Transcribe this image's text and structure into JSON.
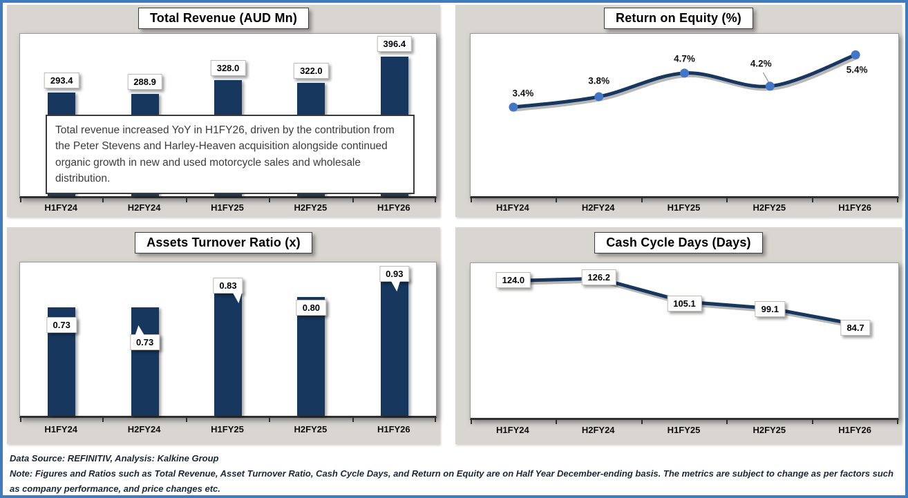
{
  "colors": {
    "navy_series": "#17375E",
    "marker_blue": "#4277C6",
    "panel_bg": "#D9D6D1",
    "outer_border_blue": "#3E7CBF",
    "label_box_bg": "#FFFFFF"
  },
  "chart_data": [
    {
      "id": "total-revenue",
      "type": "bar",
      "title": "Total Revenue (AUD Mn)",
      "categories": [
        "H1FY24",
        "H2FY24",
        "H1FY25",
        "H2FY25",
        "H1FY26"
      ],
      "values": [
        293.4,
        288.9,
        328.0,
        322.0,
        396.4
      ],
      "labels": [
        "293.4",
        "288.9",
        "328.0",
        "322.0",
        "396.4"
      ],
      "ylim": [
        0,
        460
      ],
      "grid": false,
      "legend": "none",
      "annotation": "Total revenue increased YoY in H1FY26, driven by the contribution from the Peter Stevens and Harley-Heaven acquisition alongside continued organic growth in new and used motorcycle sales and wholesale distribution."
    },
    {
      "id": "return-on-equity",
      "type": "line",
      "title": "Return on Equity (%)",
      "categories": [
        "H1FY24",
        "H2FY24",
        "H1FY25",
        "H2FY25",
        "H1FY26"
      ],
      "values": [
        3.4,
        3.8,
        4.7,
        4.2,
        5.4
      ],
      "labels": [
        "3.4%",
        "3.8%",
        "4.7%",
        "4.2%",
        "5.4%"
      ],
      "ylim": [
        0,
        6.2
      ],
      "grid": false,
      "legend": "none"
    },
    {
      "id": "assets-turnover",
      "type": "bar",
      "title": "Assets Turnover Ratio (x)",
      "categories": [
        "H1FY24",
        "H2FY24",
        "H1FY25",
        "H2FY25",
        "H1FY26"
      ],
      "values": [
        0.73,
        0.73,
        0.83,
        0.8,
        0.93
      ],
      "labels": [
        "0.73",
        "0.73",
        "0.83",
        "0.80",
        "0.93"
      ],
      "ylim": [
        0,
        1.03
      ],
      "grid": false,
      "legend": "none"
    },
    {
      "id": "cash-cycle",
      "type": "line",
      "title": "Cash Cycle Days (Days)",
      "categories": [
        "H1FY24",
        "H2FY24",
        "H1FY25",
        "H2FY25",
        "H1FY26"
      ],
      "values": [
        124.0,
        126.2,
        105.1,
        99.1,
        84.7
      ],
      "labels": [
        "124.0",
        "126.2",
        "105.1",
        "99.1",
        "84.7"
      ],
      "ylim": [
        0,
        140
      ],
      "grid": false,
      "legend": "none"
    }
  ],
  "footer": {
    "source_line": "Data Source: REFINITIV, Analysis: Kalkine Group",
    "note_line": "Note: Figures and Ratios such as Total Revenue, Asset Turnover Ratio, Cash Cycle Days, and Return on Equity are on Half Year December-ending basis. The metrics are subject to change as per factors such as company performance, and price changes etc."
  }
}
